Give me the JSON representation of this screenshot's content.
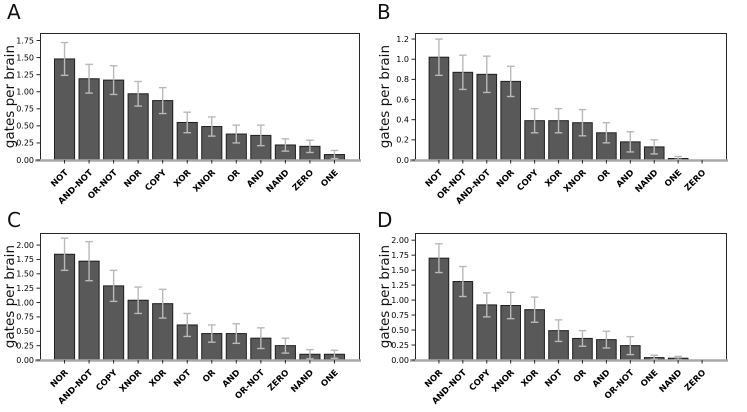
{
  "styles": {
    "bar_fill": "#595959",
    "bar_edge": "#1f1f1f",
    "error_color": "#b9b9b9",
    "axis_color": "#262626",
    "baseline_color": "#a8a8a8",
    "text_color": "#000000",
    "background": "#ffffff"
  },
  "chart_data": [
    {
      "type": "bar",
      "panel": "A",
      "title": "",
      "xlabel": "",
      "ylabel": "gates per brain",
      "ylim": [
        0,
        1.86
      ],
      "grid": false,
      "legend": null,
      "yticks": [
        0,
        0.25,
        0.5,
        0.75,
        1.0,
        1.25,
        1.5,
        1.75
      ],
      "ytick_labels": [
        "0.00",
        "0.25",
        "0.50",
        "0.75",
        "1.00",
        "1.25",
        "1.50",
        "1.75"
      ],
      "categories": [
        "NOT",
        "AND-NOT",
        "OR-NOT",
        "NOR",
        "COPY",
        "XOR",
        "XNOR",
        "OR",
        "AND",
        "NAND",
        "ZERO",
        "ONE"
      ],
      "values": [
        1.48,
        1.19,
        1.17,
        0.97,
        0.87,
        0.55,
        0.49,
        0.38,
        0.36,
        0.22,
        0.2,
        0.08
      ],
      "errors": [
        0.24,
        0.21,
        0.21,
        0.18,
        0.19,
        0.15,
        0.14,
        0.13,
        0.15,
        0.09,
        0.09,
        0.06
      ]
    },
    {
      "type": "bar",
      "panel": "B",
      "title": "",
      "xlabel": "",
      "ylabel": "gates per brain",
      "ylim": [
        0,
        1.26
      ],
      "grid": false,
      "legend": null,
      "yticks": [
        0,
        0.2,
        0.4,
        0.6,
        0.8,
        1.0,
        1.2
      ],
      "ytick_labels": [
        "0.0",
        "0.2",
        "0.4",
        "0.6",
        "0.8",
        "1.0",
        "1.2"
      ],
      "categories": [
        "NOT",
        "OR-NOT",
        "AND-NOT",
        "NOR",
        "COPY",
        "XOR",
        "XNOR",
        "OR",
        "AND",
        "NAND",
        "ONE",
        "ZERO"
      ],
      "values": [
        1.02,
        0.87,
        0.85,
        0.78,
        0.39,
        0.39,
        0.37,
        0.27,
        0.18,
        0.13,
        0.015,
        0
      ],
      "errors": [
        0.18,
        0.17,
        0.18,
        0.15,
        0.12,
        0.12,
        0.13,
        0.1,
        0.1,
        0.07,
        0.02,
        0
      ]
    },
    {
      "type": "bar",
      "panel": "C",
      "title": "",
      "xlabel": "",
      "ylabel": "gates per brain",
      "ylim": [
        0,
        2.21
      ],
      "grid": false,
      "legend": null,
      "yticks": [
        0,
        0.25,
        0.5,
        0.75,
        1.0,
        1.25,
        1.5,
        1.75,
        2.0
      ],
      "ytick_labels": [
        "0.00",
        "0.25",
        "0.50",
        "0.75",
        "1.00",
        "1.25",
        "1.50",
        "1.75",
        "2.00"
      ],
      "categories": [
        "NOR",
        "AND-NOT",
        "COPY",
        "XNOR",
        "XOR",
        "NOT",
        "OR",
        "AND",
        "OR-NOT",
        "ZERO",
        "NAND",
        "ONE"
      ],
      "values": [
        1.84,
        1.72,
        1.29,
        1.04,
        0.98,
        0.61,
        0.46,
        0.46,
        0.38,
        0.25,
        0.1,
        0.1
      ],
      "errors": [
        0.28,
        0.34,
        0.27,
        0.23,
        0.25,
        0.2,
        0.15,
        0.17,
        0.18,
        0.13,
        0.08,
        0.07
      ]
    },
    {
      "type": "bar",
      "panel": "D",
      "title": "",
      "xlabel": "",
      "ylabel": "gates per brain",
      "ylim": [
        0,
        2.12
      ],
      "grid": false,
      "legend": null,
      "yticks": [
        0,
        0.25,
        0.5,
        0.75,
        1.0,
        1.25,
        1.5,
        1.75,
        2.0
      ],
      "ytick_labels": [
        "0.00",
        "0.25",
        "0.50",
        "0.75",
        "1.00",
        "1.25",
        "1.50",
        "1.75",
        "2.00"
      ],
      "categories": [
        "NOR",
        "AND-NOT",
        "COPY",
        "XNOR",
        "XOR",
        "NOT",
        "OR",
        "AND",
        "OR-NOT",
        "ONE",
        "NAND",
        "ZERO"
      ],
      "values": [
        1.7,
        1.31,
        0.92,
        0.91,
        0.84,
        0.49,
        0.36,
        0.34,
        0.24,
        0.04,
        0.03,
        0
      ],
      "errors": [
        0.24,
        0.25,
        0.2,
        0.22,
        0.21,
        0.18,
        0.13,
        0.14,
        0.15,
        0.04,
        0.03,
        0
      ]
    }
  ]
}
